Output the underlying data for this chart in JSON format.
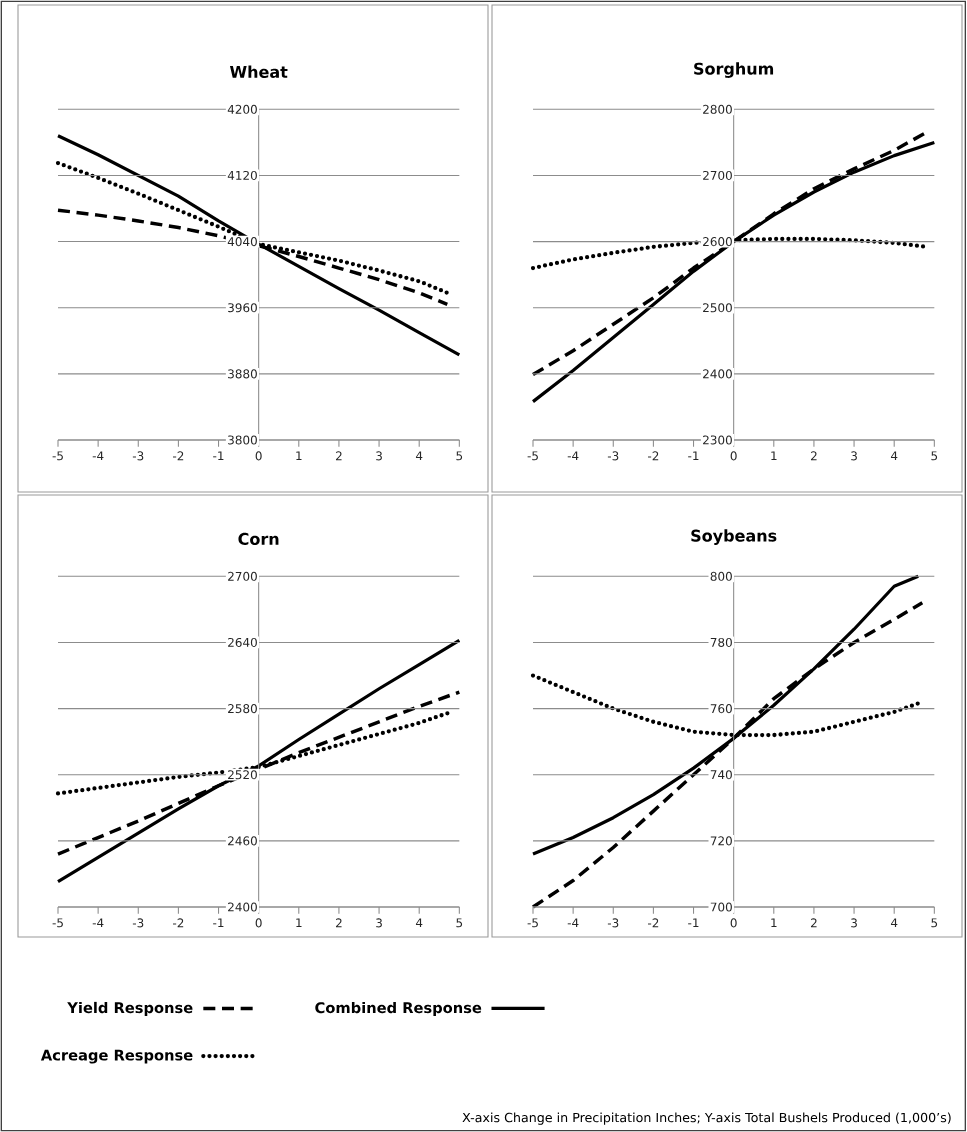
{
  "chart_data": [
    {
      "type": "line",
      "title": "Wheat",
      "xlim": [
        -5,
        5
      ],
      "xticks": [
        -5,
        -4,
        -3,
        -2,
        -1,
        0,
        1,
        2,
        3,
        4,
        5
      ],
      "ylim": [
        3800,
        4200
      ],
      "yticks": [
        3800,
        3880,
        3960,
        4040,
        4120,
        4200
      ],
      "grid": "y",
      "series": [
        {
          "color": "#000000",
          "line_style": "dashed",
          "x": [
            -5,
            -4,
            -3,
            -2,
            -1,
            0,
            1,
            2,
            3,
            4,
            4.7
          ],
          "values": [
            4078,
            4072,
            4065,
            4057,
            4047,
            4035,
            4022,
            4008,
            3994,
            3978,
            3964
          ]
        },
        {
          "color": "#000000",
          "line_style": "solid",
          "x": [
            -5,
            -4,
            -3,
            -2,
            -1,
            0,
            1,
            2,
            3,
            4,
            5
          ],
          "values": [
            4168,
            4145,
            4120,
            4095,
            4065,
            4037,
            4010,
            3983,
            3957,
            3930,
            3903
          ]
        },
        {
          "color": "#000000",
          "line_style": "dotted",
          "x": [
            -5,
            -4,
            -3,
            -2,
            -1,
            0,
            1,
            2,
            3,
            4,
            4.8
          ],
          "values": [
            4135,
            4117,
            4098,
            4078,
            4058,
            4037,
            4027,
            4017,
            4005,
            3992,
            3976
          ]
        }
      ]
    },
    {
      "type": "line",
      "title": "Sorghum",
      "xlim": [
        -5,
        5
      ],
      "xticks": [
        -5,
        -4,
        -3,
        -2,
        -1,
        0,
        1,
        2,
        3,
        4,
        5
      ],
      "ylim": [
        2300,
        2800
      ],
      "yticks": [
        2300,
        2400,
        2500,
        2600,
        2700,
        2800
      ],
      "grid": "y",
      "series": [
        {
          "color": "#000000",
          "line_style": "dashed",
          "x": [
            -5,
            -4,
            -3,
            -2,
            -1,
            0,
            1,
            2,
            3,
            4,
            4.8
          ],
          "values": [
            2399,
            2435,
            2475,
            2515,
            2560,
            2600,
            2642,
            2680,
            2710,
            2738,
            2765
          ]
        },
        {
          "color": "#000000",
          "line_style": "solid",
          "x": [
            -5,
            -4,
            -3,
            -2,
            -1,
            0,
            1,
            2,
            3,
            4,
            5
          ],
          "values": [
            2358,
            2405,
            2455,
            2505,
            2555,
            2600,
            2640,
            2675,
            2705,
            2730,
            2750
          ]
        },
        {
          "color": "#000000",
          "line_style": "dotted",
          "x": [
            -5,
            -4,
            -3,
            -2,
            -1,
            0,
            1,
            2,
            3,
            4,
            4.8
          ],
          "values": [
            2560,
            2573,
            2583,
            2592,
            2598,
            2602,
            2604,
            2604,
            2602,
            2598,
            2592
          ]
        }
      ]
    },
    {
      "type": "line",
      "title": "Corn",
      "xlim": [
        -5,
        5
      ],
      "xticks": [
        -5,
        -4,
        -3,
        -2,
        -1,
        0,
        1,
        2,
        3,
        4,
        5
      ],
      "ylim": [
        2400,
        2700
      ],
      "yticks": [
        2400,
        2460,
        2520,
        2580,
        2640,
        2700
      ],
      "grid": "y",
      "legend": "bottom",
      "series": [
        {
          "name": "Yield Response",
          "color": "#000000",
          "line_style": "dashed",
          "x": [
            -5,
            -4,
            -3,
            -2,
            -1,
            0,
            1,
            2,
            3,
            4,
            5
          ],
          "values": [
            2448,
            2463,
            2478,
            2494,
            2510,
            2525,
            2540,
            2554,
            2568,
            2582,
            2595
          ]
        },
        {
          "name": "Combined Response",
          "color": "#000000",
          "line_style": "solid",
          "x": [
            -5,
            -4,
            -3,
            -2,
            -1,
            0,
            1,
            2,
            3,
            4,
            5
          ],
          "values": [
            2423,
            2445,
            2467,
            2489,
            2510,
            2528,
            2552,
            2575,
            2598,
            2620,
            2642
          ]
        },
        {
          "name": "Acreage Response",
          "color": "#000000",
          "line_style": "dotted",
          "x": [
            -5,
            -4,
            -3,
            -2,
            -1,
            0,
            1,
            2,
            3,
            4,
            4.8
          ],
          "values": [
            2503,
            2508,
            2513,
            2518,
            2522,
            2527,
            2537,
            2547,
            2557,
            2567,
            2577
          ]
        }
      ]
    },
    {
      "type": "line",
      "title": "Soybeans",
      "xlim": [
        -5,
        5
      ],
      "xticks": [
        -5,
        -4,
        -3,
        -2,
        -1,
        0,
        1,
        2,
        3,
        4,
        5
      ],
      "ylim": [
        700,
        800
      ],
      "yticks": [
        700,
        720,
        740,
        760,
        780,
        800
      ],
      "grid": "y",
      "annotations": [
        "X-axis Change in Precipitation Inches; Y-axis Total Bushels Produced (1,000’s)"
      ],
      "series": [
        {
          "color": "#000000",
          "line_style": "dashed",
          "x": [
            -5,
            -4,
            -3,
            -2,
            -1,
            0,
            1,
            2,
            3,
            4,
            4.7
          ],
          "values": [
            700,
            708,
            718,
            729,
            740,
            751,
            763,
            772,
            780,
            787,
            792
          ]
        },
        {
          "color": "#000000",
          "line_style": "solid",
          "x": [
            -5,
            -4,
            -3,
            -2,
            -1,
            0,
            1,
            2,
            3,
            4,
            4.6
          ],
          "values": [
            716,
            721,
            727,
            734,
            742,
            751,
            761,
            772,
            784,
            797,
            800
          ]
        },
        {
          "color": "#000000",
          "line_style": "dotted",
          "x": [
            -5,
            -4,
            -3,
            -2,
            -1,
            0,
            1,
            2,
            3,
            4,
            4.7
          ],
          "values": [
            770,
            765,
            760,
            756,
            753,
            752,
            752,
            753,
            756,
            759,
            762
          ]
        }
      ]
    }
  ]
}
